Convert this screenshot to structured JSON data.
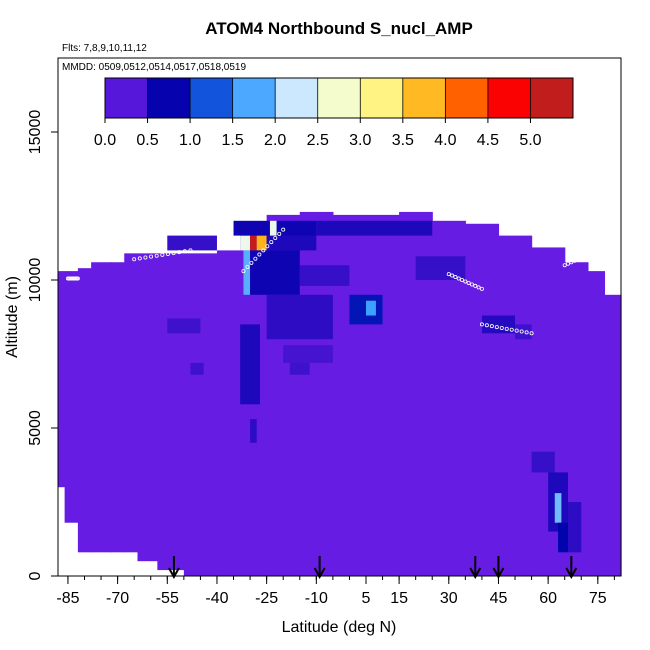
{
  "chart_data": {
    "type": "heatmap",
    "title": "ATOM4 Northbound S_nucl_AMP",
    "flights_note": "Flts: 7,8,9,10,11,12",
    "dates_note": "MMDD: 0509,0512,0514,0517,0518,0519",
    "xlabel": "Latitude (deg N)",
    "ylabel": "Altitude (m)",
    "xlim": [
      -88,
      82
    ],
    "ylim": [
      0,
      17500
    ],
    "x_ticks": [
      -85,
      -70,
      -55,
      -40,
      -25,
      -10,
      5,
      15,
      30,
      45,
      60,
      75
    ],
    "x_minor_step": 5,
    "y_ticks": [
      0,
      5000,
      10000,
      15000
    ],
    "colorbar": {
      "range": [
        0,
        5.5
      ],
      "ticks": [
        "0.0",
        "0.5",
        "1.0",
        "1.5",
        "2.0",
        "2.5",
        "3.0",
        "3.5",
        "4.0",
        "4.5",
        "5.0"
      ],
      "colors": [
        "#7f22f0",
        "#0000aa",
        "#1e90ff",
        "#e8f6ff",
        "#ffff99",
        "#ffa500",
        "#ff0000",
        "#a52a2a"
      ]
    },
    "background_value": 0.15,
    "domain_columns": [
      [
        -88,
        3000,
        10300
      ],
      [
        -86,
        1800,
        10300
      ],
      [
        -82,
        800,
        10400
      ],
      [
        -78,
        800,
        10600
      ],
      [
        -72,
        800,
        10600
      ],
      [
        -68,
        800,
        10900
      ],
      [
        -64,
        500,
        10900
      ],
      [
        -58,
        200,
        10900
      ],
      [
        -50,
        0,
        10900
      ],
      [
        -40,
        0,
        11000
      ],
      [
        -33,
        0,
        11800
      ],
      [
        -25,
        0,
        12200
      ],
      [
        -15,
        0,
        12300
      ],
      [
        -5,
        0,
        12200
      ],
      [
        5,
        0,
        12200
      ],
      [
        15,
        0,
        12300
      ],
      [
        25,
        0,
        12000
      ],
      [
        35,
        0,
        11900
      ],
      [
        45,
        0,
        11500
      ],
      [
        55,
        0,
        11100
      ],
      [
        65,
        0,
        10600
      ],
      [
        72,
        0,
        10300
      ],
      [
        77,
        0,
        9500
      ],
      [
        80,
        0,
        9500
      ]
    ],
    "features": [
      {
        "lat": [
          -33,
          -30
        ],
        "alt": [
          11000,
          11500
        ],
        "value": 2.5
      },
      {
        "lat": [
          -30,
          -28
        ],
        "alt": [
          11000,
          11500
        ],
        "value": 5.2
      },
      {
        "lat": [
          -28,
          -25
        ],
        "alt": [
          11000,
          11500
        ],
        "value": 3.8
      },
      {
        "lat": [
          -25,
          -10
        ],
        "alt": [
          11000,
          11500
        ],
        "value": 0.6
      },
      {
        "lat": [
          -35,
          -10
        ],
        "alt": [
          11500,
          12000
        ],
        "value": 0.7
      },
      {
        "lat": [
          -24,
          -22
        ],
        "alt": [
          11500,
          12000
        ],
        "value": 2.5
      },
      {
        "lat": [
          -10,
          25
        ],
        "alt": [
          11500,
          12000
        ],
        "value": 0.6
      },
      {
        "lat": [
          -55,
          -40
        ],
        "alt": [
          11000,
          11500
        ],
        "value": 0.45
      },
      {
        "lat": [
          -32,
          -30
        ],
        "alt": [
          9500,
          11000
        ],
        "value": 1.8
      },
      {
        "lat": [
          -30,
          -15
        ],
        "alt": [
          9500,
          11000
        ],
        "value": 0.7
      },
      {
        "lat": [
          -15,
          0
        ],
        "alt": [
          9800,
          10500
        ],
        "value": 0.45
      },
      {
        "lat": [
          -25,
          -5
        ],
        "alt": [
          8000,
          9500
        ],
        "value": 0.5
      },
      {
        "lat": [
          0,
          10
        ],
        "alt": [
          8500,
          9500
        ],
        "value": 0.9
      },
      {
        "lat": [
          5,
          8
        ],
        "alt": [
          8800,
          9300
        ],
        "value": 1.7
      },
      {
        "lat": [
          -33,
          -27
        ],
        "alt": [
          5800,
          8500
        ],
        "value": 0.6
      },
      {
        "lat": [
          -30,
          -28
        ],
        "alt": [
          4500,
          5300
        ],
        "value": 0.5
      },
      {
        "lat": [
          -55,
          -45
        ],
        "alt": [
          8200,
          8700
        ],
        "value": 0.4
      },
      {
        "lat": [
          -48,
          -44
        ],
        "alt": [
          6800,
          7200
        ],
        "value": 0.4
      },
      {
        "lat": [
          -18,
          -12
        ],
        "alt": [
          6800,
          7500
        ],
        "value": 0.4
      },
      {
        "lat": [
          40,
          50
        ],
        "alt": [
          8200,
          8800
        ],
        "value": 0.55
      },
      {
        "lat": [
          50,
          55
        ],
        "alt": [
          8000,
          8500
        ],
        "value": 0.4
      },
      {
        "lat": [
          55,
          62
        ],
        "alt": [
          3500,
          4200
        ],
        "value": 0.45
      },
      {
        "lat": [
          60,
          66
        ],
        "alt": [
          1500,
          3500
        ],
        "value": 0.6
      },
      {
        "lat": [
          62,
          64
        ],
        "alt": [
          1800,
          2800
        ],
        "value": 1.9
      },
      {
        "lat": [
          63,
          66
        ],
        "alt": [
          800,
          1800
        ],
        "value": 0.8
      },
      {
        "lat": [
          66,
          70
        ],
        "alt": [
          800,
          2500
        ],
        "value": 0.5
      },
      {
        "lat": [
          20,
          35
        ],
        "alt": [
          10000,
          10800
        ],
        "value": 0.45
      },
      {
        "lat": [
          -20,
          -5
        ],
        "alt": [
          7200,
          7800
        ],
        "value": 0.35
      }
    ],
    "flight_tracks": [
      {
        "lat": [
          -32,
          -20
        ],
        "alt": [
          10300,
          11700
        ]
      },
      {
        "lat": [
          -65,
          -48
        ],
        "alt": [
          10700,
          11000
        ]
      },
      {
        "lat": [
          30,
          40
        ],
        "alt": [
          10200,
          9700
        ]
      },
      {
        "lat": [
          40,
          55
        ],
        "alt": [
          8500,
          8200
        ]
      },
      {
        "lat": [
          65,
          75
        ],
        "alt": [
          10500,
          11000
        ]
      },
      {
        "lat": [
          -85,
          -82
        ],
        "alt": [
          10050,
          10050
        ]
      }
    ],
    "arrows_lat": [
      -53,
      -9,
      38,
      45,
      67
    ]
  }
}
